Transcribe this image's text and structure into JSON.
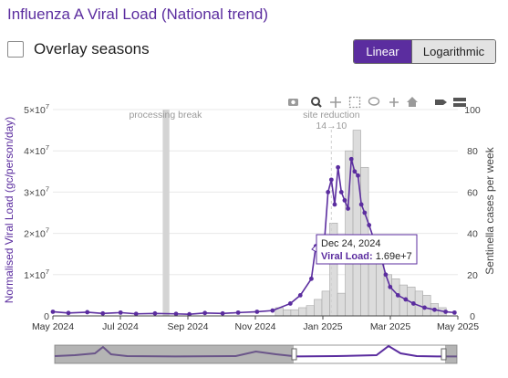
{
  "page": {
    "title": "Influenza A Viral Load (National trend)",
    "overlay_label": "Overlay seasons",
    "overlay_checked": false,
    "scale_buttons": [
      {
        "label": "Linear",
        "active": true
      },
      {
        "label": "Logarithmic",
        "active": false
      }
    ],
    "toolbar_icons": [
      "camera-icon",
      "zoom-icon",
      "pan-icon",
      "box-select-icon",
      "lasso-select-icon",
      "zoom-in-icon",
      "zoom-out-icon",
      "autoscale-icon",
      "reset-axes-icon",
      "hover-closest-icon",
      "hover-compare-icon"
    ]
  },
  "chart_data": {
    "type": "line",
    "ylabel": "Normalised Viral Load (gc/person/day)",
    "y2label": "Sentinella cases per week",
    "xlim": [
      "2024-05-01",
      "2025-05-01"
    ],
    "ylim": [
      0,
      50000000
    ],
    "y2lim": [
      0,
      100
    ],
    "x_ticks": [
      "May 2024",
      "Jul 2024",
      "Sep 2024",
      "Nov 2024",
      "Jan 2025",
      "Mar 2025",
      "May 2025"
    ],
    "y_ticks": [
      {
        "value": 0,
        "mantissa": "0",
        "exp": ""
      },
      {
        "value": 10000000,
        "mantissa": "1×10",
        "exp": "7"
      },
      {
        "value": 20000000,
        "mantissa": "2×10",
        "exp": "7"
      },
      {
        "value": 30000000,
        "mantissa": "3×10",
        "exp": "7"
      },
      {
        "value": 40000000,
        "mantissa": "4×10",
        "exp": "7"
      },
      {
        "value": 50000000,
        "mantissa": "5×10",
        "exp": "7"
      }
    ],
    "y2_ticks": [
      0,
      20,
      40,
      60,
      80,
      100
    ],
    "colors": {
      "line": "#5b2d9f",
      "bars": "#dcdcdc",
      "bar_edge": "#a6a6a6",
      "band": "#d4d4d4",
      "grid": "#e8e8e8"
    },
    "annotations": [
      {
        "text": "processing break",
        "start": "2024-08-08",
        "end": "2024-08-14"
      },
      {
        "text": "site reduction",
        "subtext": "14→10",
        "at": "2025-01-07"
      }
    ],
    "series": [
      {
        "name": "Viral Load",
        "x": [
          "2024-05-01",
          "2024-05-15",
          "2024-06-01",
          "2024-06-15",
          "2024-07-01",
          "2024-07-15",
          "2024-08-01",
          "2024-08-20",
          "2024-09-01",
          "2024-09-15",
          "2024-10-01",
          "2024-10-15",
          "2024-11-01",
          "2024-11-15",
          "2024-12-01",
          "2024-12-10",
          "2024-12-20",
          "2024-12-24",
          "2024-12-28",
          "2025-01-01",
          "2025-01-04",
          "2025-01-07",
          "2025-01-10",
          "2025-01-13",
          "2025-01-16",
          "2025-01-19",
          "2025-01-22",
          "2025-01-25",
          "2025-01-28",
          "2025-01-31",
          "2025-02-03",
          "2025-02-06",
          "2025-02-10",
          "2025-02-15",
          "2025-02-20",
          "2025-02-25",
          "2025-03-01",
          "2025-03-08",
          "2025-03-15",
          "2025-03-22",
          "2025-04-01",
          "2025-04-10",
          "2025-04-20",
          "2025-04-28"
        ],
        "y": [
          1000000,
          700000,
          900000,
          600000,
          800000,
          500000,
          600000,
          500000,
          400000,
          700000,
          600000,
          800000,
          1000000,
          1300000,
          3000000,
          5000000,
          9000000,
          16900000,
          15000000,
          19000000,
          30000000,
          33000000,
          27000000,
          36000000,
          30000000,
          28000000,
          26000000,
          38000000,
          35000000,
          34000000,
          27000000,
          25000000,
          22000000,
          18000000,
          15000000,
          10000000,
          7000000,
          5000000,
          4000000,
          3000000,
          2000000,
          1500000,
          1000000,
          800000
        ]
      }
    ],
    "bars": {
      "name": "Sentinella cases per week",
      "x": [
        "2024-11-21",
        "2024-11-28",
        "2024-12-05",
        "2024-12-12",
        "2024-12-19",
        "2024-12-26",
        "2025-01-02",
        "2025-01-09",
        "2025-01-16",
        "2025-01-23",
        "2025-01-30",
        "2025-02-06",
        "2025-02-13",
        "2025-02-20",
        "2025-02-27",
        "2025-03-06",
        "2025-03-13",
        "2025-03-20",
        "2025-03-27",
        "2025-04-03",
        "2025-04-10",
        "2025-04-17"
      ],
      "values": [
        4,
        3,
        3,
        4,
        5,
        8,
        12,
        45,
        11,
        80,
        90,
        72,
        38,
        30,
        20,
        18,
        15,
        14,
        12,
        10,
        6,
        4
      ]
    },
    "tooltip": {
      "date": "Dec 24, 2024",
      "label": "Viral Load",
      "value": "1.69e+7"
    }
  }
}
